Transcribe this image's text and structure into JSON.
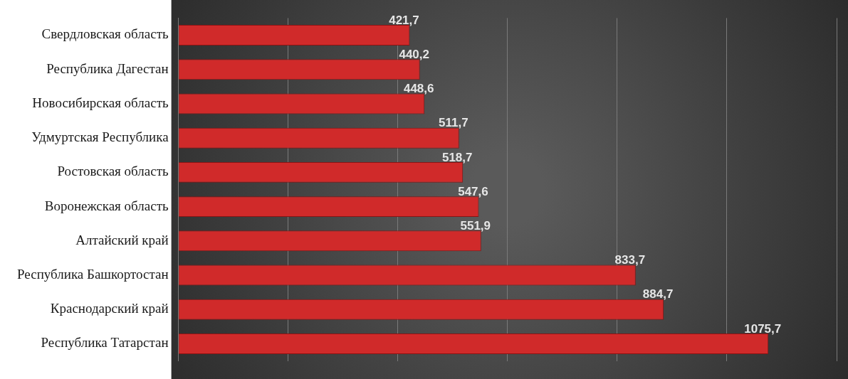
{
  "chart_data": {
    "type": "bar",
    "orientation": "horizontal",
    "categories": [
      "Свердловская область",
      "Республика Дагестан",
      "Новосибирская область",
      "Удмуртская Республика",
      "Ростовская область",
      "Воронежская область",
      "Алтайский край",
      "Республика Башкортостан",
      "Краснодарский край",
      "Республика Татарстан"
    ],
    "values": [
      421.7,
      440.2,
      448.6,
      511.7,
      518.7,
      547.6,
      551.9,
      833.7,
      884.7,
      1075.7
    ],
    "value_labels": [
      "421,7",
      "440,2",
      "448,6",
      "511,7",
      "518,7",
      "547,6",
      "551,9",
      "833,7",
      "884,7",
      "1075,7"
    ],
    "color": "#d02a2a",
    "xlim": [
      0,
      1200
    ],
    "xticks": [
      {
        "value": 0,
        "label": null
      },
      {
        "value": 200,
        "label": null
      },
      {
        "value": 400,
        "label": null
      },
      {
        "value": 600,
        "label": null
      },
      {
        "value": 800,
        "label": null
      },
      {
        "value": 1000,
        "label": null
      },
      {
        "value": 1200,
        "label": null
      }
    ],
    "grid": "x",
    "tick_labels": "y"
  }
}
